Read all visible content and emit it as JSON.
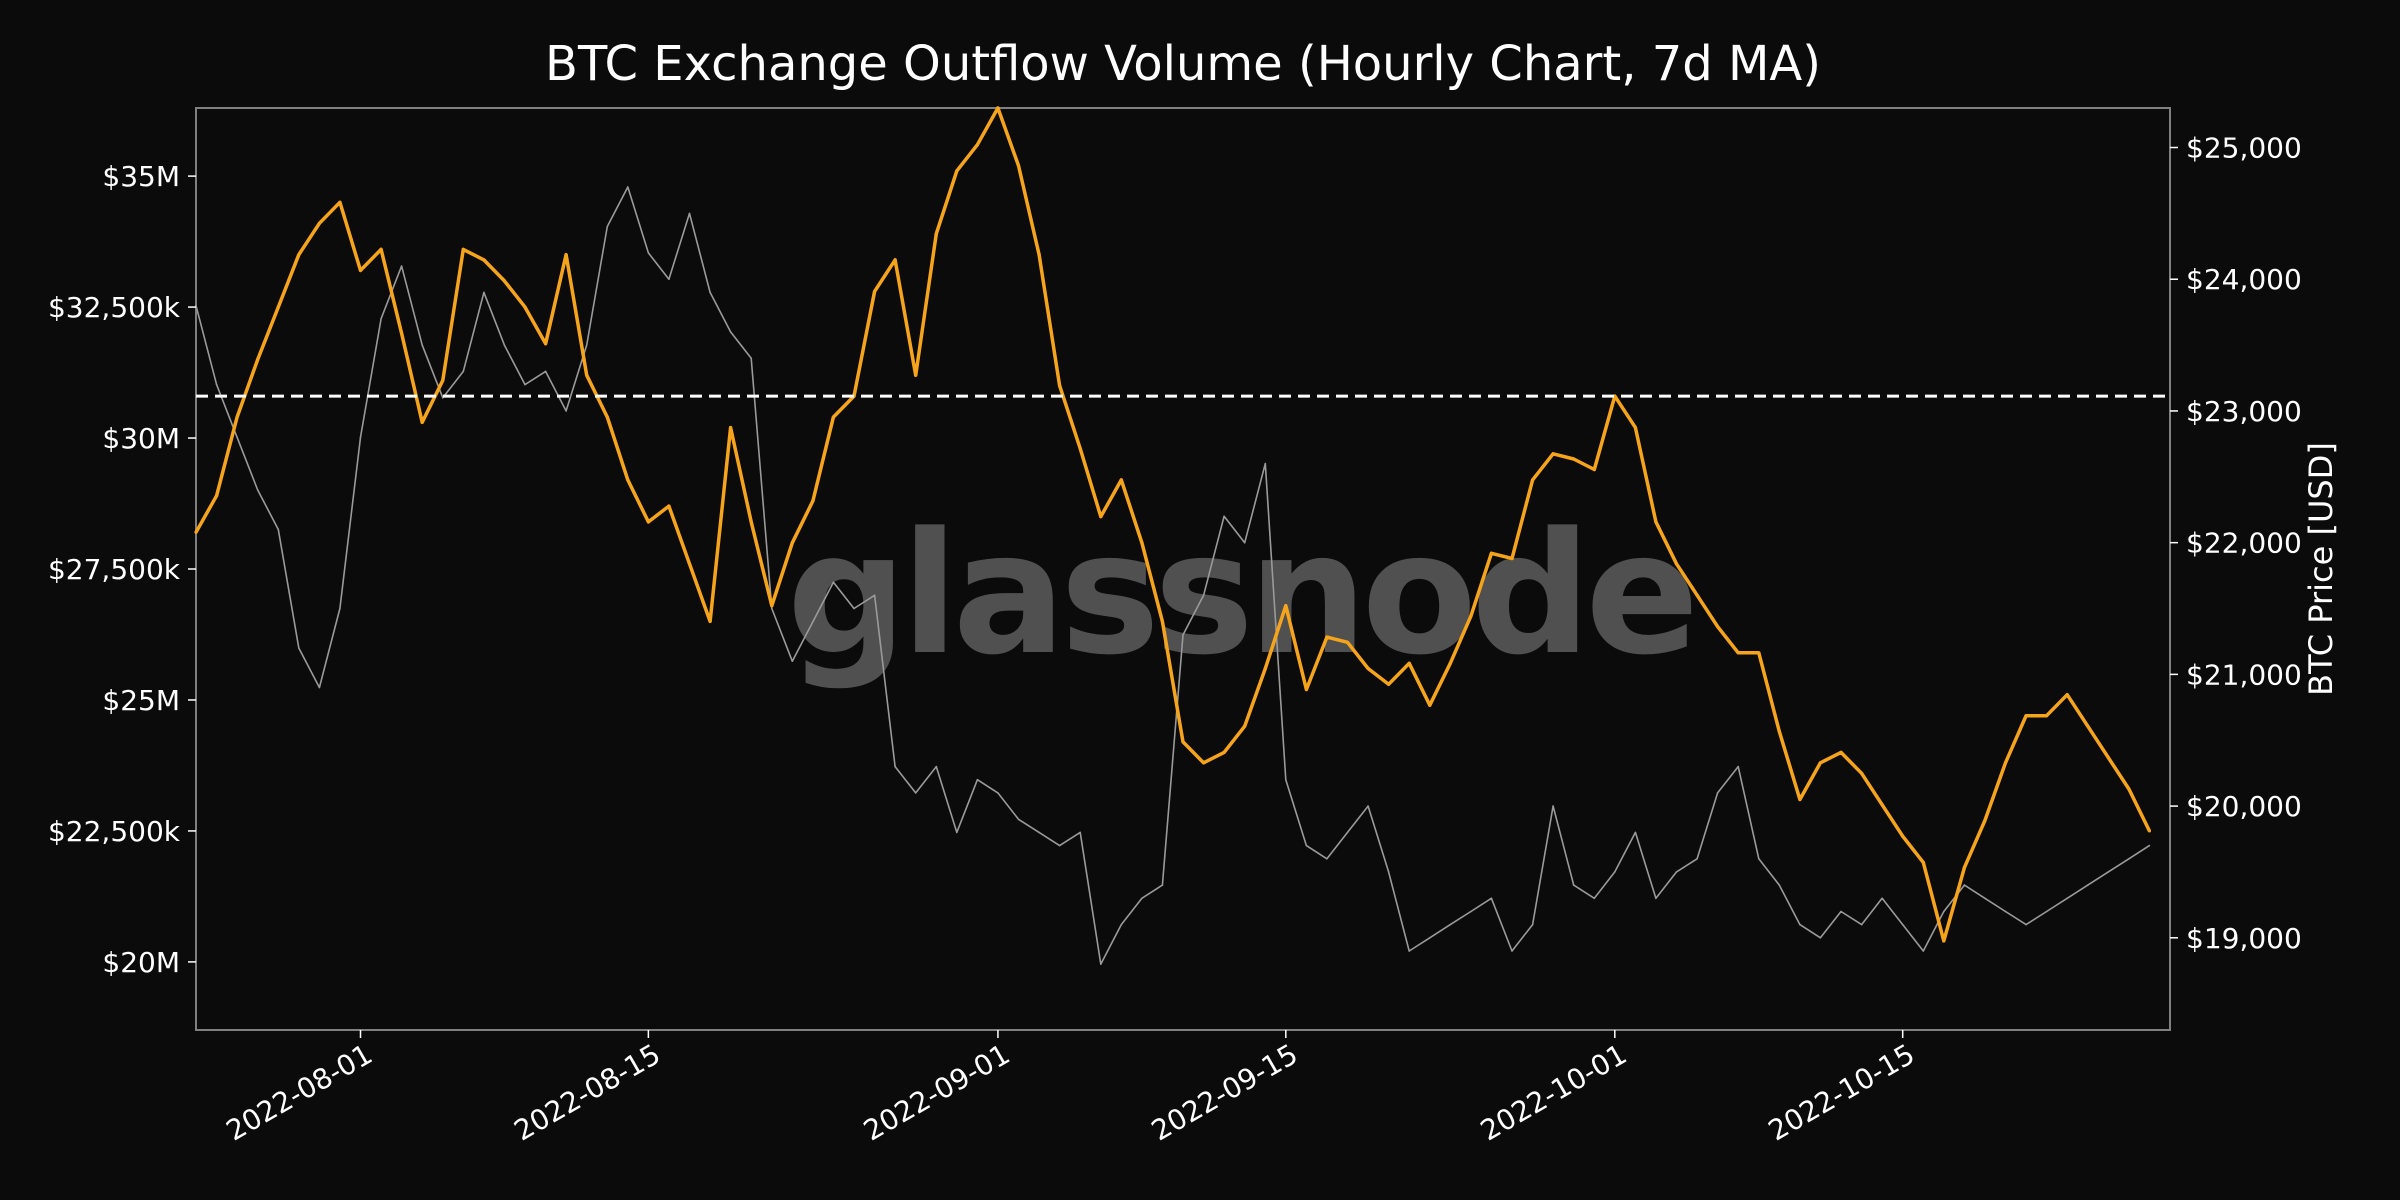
{
  "chart_data": {
    "type": "line",
    "title": "BTC Exchange Outflow Volume (Hourly Chart, 7d MA)",
    "watermark": "glassnode",
    "ylabel_right": "BTC Price [USD]",
    "x_range": [
      "2022-07-24",
      "2022-10-28"
    ],
    "x_ticks": [
      "2022-08-01",
      "2022-08-15",
      "2022-09-01",
      "2022-09-15",
      "2022-10-01",
      "2022-10-15"
    ],
    "y_left_range": [
      18700000,
      36300000
    ],
    "y_left_ticks": [
      {
        "value": 20000000,
        "label": "$20M"
      },
      {
        "value": 22500000,
        "label": "$22,500k"
      },
      {
        "value": 25000000,
        "label": "$25M"
      },
      {
        "value": 27500000,
        "label": "$27,500k"
      },
      {
        "value": 30000000,
        "label": "$30M"
      },
      {
        "value": 32500000,
        "label": "$32,500k"
      },
      {
        "value": 35000000,
        "label": "$35M"
      }
    ],
    "y_right_range": [
      18300,
      25300
    ],
    "y_right_ticks": [
      {
        "value": 19000,
        "label": "$19,000"
      },
      {
        "value": 20000,
        "label": "$20,000"
      },
      {
        "value": 21000,
        "label": "$21,000"
      },
      {
        "value": 22000,
        "label": "$22,000"
      },
      {
        "value": 23000,
        "label": "$23,000"
      },
      {
        "value": 24000,
        "label": "$24,000"
      },
      {
        "value": 25000,
        "label": "$25,000"
      }
    ],
    "reference_line": {
      "value": 30800000,
      "style": "dashed",
      "color": "#ffffff"
    },
    "grid": false,
    "colors": {
      "outflow": "#f7a41d",
      "price": "#9a9a9a",
      "background": "#0b0b0b",
      "frame": "#808080"
    },
    "series": [
      {
        "axis": "left",
        "points": [
          [
            "2022-07-24",
            28200000
          ],
          [
            "2022-07-25",
            28900000
          ],
          [
            "2022-07-26",
            30400000
          ],
          [
            "2022-07-27",
            31500000
          ],
          [
            "2022-07-28",
            32500000
          ],
          [
            "2022-07-29",
            33500000
          ],
          [
            "2022-07-30",
            34100000
          ],
          [
            "2022-07-31",
            34500000
          ],
          [
            "2022-08-01",
            33200000
          ],
          [
            "2022-08-02",
            33600000
          ],
          [
            "2022-08-03",
            32000000
          ],
          [
            "2022-08-04",
            30300000
          ],
          [
            "2022-08-05",
            31100000
          ],
          [
            "2022-08-06",
            33600000
          ],
          [
            "2022-08-07",
            33400000
          ],
          [
            "2022-08-08",
            33000000
          ],
          [
            "2022-08-09",
            32500000
          ],
          [
            "2022-08-10",
            31800000
          ],
          [
            "2022-08-11",
            33500000
          ],
          [
            "2022-08-12",
            31200000
          ],
          [
            "2022-08-13",
            30400000
          ],
          [
            "2022-08-14",
            29200000
          ],
          [
            "2022-08-15",
            28400000
          ],
          [
            "2022-08-16",
            28700000
          ],
          [
            "2022-08-17",
            27600000
          ],
          [
            "2022-08-18",
            26500000
          ],
          [
            "2022-08-19",
            30200000
          ],
          [
            "2022-08-20",
            28400000
          ],
          [
            "2022-08-21",
            26800000
          ],
          [
            "2022-08-22",
            28000000
          ],
          [
            "2022-08-23",
            28800000
          ],
          [
            "2022-08-24",
            30400000
          ],
          [
            "2022-08-25",
            30800000
          ],
          [
            "2022-08-26",
            32800000
          ],
          [
            "2022-08-27",
            33400000
          ],
          [
            "2022-08-28",
            31200000
          ],
          [
            "2022-08-29",
            33900000
          ],
          [
            "2022-08-30",
            35100000
          ],
          [
            "2022-08-31",
            35600000
          ],
          [
            "2022-09-01",
            36300000
          ],
          [
            "2022-09-02",
            35200000
          ],
          [
            "2022-09-03",
            33500000
          ],
          [
            "2022-09-04",
            31000000
          ],
          [
            "2022-09-05",
            29800000
          ],
          [
            "2022-09-06",
            28500000
          ],
          [
            "2022-09-07",
            29200000
          ],
          [
            "2022-09-08",
            28000000
          ],
          [
            "2022-09-09",
            26500000
          ],
          [
            "2022-09-10",
            24200000
          ],
          [
            "2022-09-11",
            23800000
          ],
          [
            "2022-09-12",
            24000000
          ],
          [
            "2022-09-13",
            24500000
          ],
          [
            "2022-09-14",
            25600000
          ],
          [
            "2022-09-15",
            26800000
          ],
          [
            "2022-09-16",
            25200000
          ],
          [
            "2022-09-17",
            26200000
          ],
          [
            "2022-09-18",
            26100000
          ],
          [
            "2022-09-19",
            25600000
          ],
          [
            "2022-09-20",
            25300000
          ],
          [
            "2022-09-21",
            25700000
          ],
          [
            "2022-09-22",
            24900000
          ],
          [
            "2022-09-23",
            25700000
          ],
          [
            "2022-09-24",
            26600000
          ],
          [
            "2022-09-25",
            27800000
          ],
          [
            "2022-09-26",
            27700000
          ],
          [
            "2022-09-27",
            29200000
          ],
          [
            "2022-09-28",
            29700000
          ],
          [
            "2022-09-29",
            29600000
          ],
          [
            "2022-09-30",
            29400000
          ],
          [
            "2022-10-01",
            30800000
          ],
          [
            "2022-10-02",
            30200000
          ],
          [
            "2022-10-03",
            28400000
          ],
          [
            "2022-10-04",
            27600000
          ],
          [
            "2022-10-05",
            27000000
          ],
          [
            "2022-10-06",
            26400000
          ],
          [
            "2022-10-07",
            25900000
          ],
          [
            "2022-10-08",
            25900000
          ],
          [
            "2022-10-09",
            24400000
          ],
          [
            "2022-10-10",
            23100000
          ],
          [
            "2022-10-11",
            23800000
          ],
          [
            "2022-10-12",
            24000000
          ],
          [
            "2022-10-13",
            23600000
          ],
          [
            "2022-10-14",
            23000000
          ],
          [
            "2022-10-15",
            22400000
          ],
          [
            "2022-10-16",
            21900000
          ],
          [
            "2022-10-17",
            20400000
          ],
          [
            "2022-10-18",
            21800000
          ],
          [
            "2022-10-19",
            22700000
          ],
          [
            "2022-10-20",
            23800000
          ],
          [
            "2022-10-21",
            24700000
          ],
          [
            "2022-10-22",
            24700000
          ],
          [
            "2022-10-23",
            25100000
          ],
          [
            "2022-10-24",
            24500000
          ],
          [
            "2022-10-25",
            23900000
          ],
          [
            "2022-10-26",
            23300000
          ],
          [
            "2022-10-27",
            22500000
          ]
        ]
      },
      {
        "axis": "right",
        "points": [
          [
            "2022-07-24",
            23800
          ],
          [
            "2022-07-25",
            23200
          ],
          [
            "2022-07-26",
            22800
          ],
          [
            "2022-07-27",
            22400
          ],
          [
            "2022-07-28",
            22100
          ],
          [
            "2022-07-29",
            21200
          ],
          [
            "2022-07-30",
            20900
          ],
          [
            "2022-07-31",
            21500
          ],
          [
            "2022-08-01",
            22800
          ],
          [
            "2022-08-02",
            23700
          ],
          [
            "2022-08-03",
            24100
          ],
          [
            "2022-08-04",
            23500
          ],
          [
            "2022-08-05",
            23100
          ],
          [
            "2022-08-06",
            23300
          ],
          [
            "2022-08-07",
            23900
          ],
          [
            "2022-08-08",
            23500
          ],
          [
            "2022-08-09",
            23200
          ],
          [
            "2022-08-10",
            23300
          ],
          [
            "2022-08-11",
            23000
          ],
          [
            "2022-08-12",
            23500
          ],
          [
            "2022-08-13",
            24400
          ],
          [
            "2022-08-14",
            24700
          ],
          [
            "2022-08-15",
            24200
          ],
          [
            "2022-08-16",
            24000
          ],
          [
            "2022-08-17",
            24500
          ],
          [
            "2022-08-18",
            23900
          ],
          [
            "2022-08-19",
            23600
          ],
          [
            "2022-08-20",
            23400
          ],
          [
            "2022-08-21",
            21500
          ],
          [
            "2022-08-22",
            21100
          ],
          [
            "2022-08-23",
            21400
          ],
          [
            "2022-08-24",
            21700
          ],
          [
            "2022-08-25",
            21500
          ],
          [
            "2022-08-26",
            21600
          ],
          [
            "2022-08-27",
            20300
          ],
          [
            "2022-08-28",
            20100
          ],
          [
            "2022-08-29",
            20300
          ],
          [
            "2022-08-30",
            19800
          ],
          [
            "2022-08-31",
            20200
          ],
          [
            "2022-09-01",
            20100
          ],
          [
            "2022-09-02",
            19900
          ],
          [
            "2022-09-03",
            19800
          ],
          [
            "2022-09-04",
            19700
          ],
          [
            "2022-09-05",
            19800
          ],
          [
            "2022-09-06",
            18800
          ],
          [
            "2022-09-07",
            19100
          ],
          [
            "2022-09-08",
            19300
          ],
          [
            "2022-09-09",
            19400
          ],
          [
            "2022-09-10",
            21300
          ],
          [
            "2022-09-11",
            21600
          ],
          [
            "2022-09-12",
            22200
          ],
          [
            "2022-09-13",
            22000
          ],
          [
            "2022-09-14",
            22600
          ],
          [
            "2022-09-15",
            20200
          ],
          [
            "2022-09-16",
            19700
          ],
          [
            "2022-09-17",
            19600
          ],
          [
            "2022-09-18",
            19800
          ],
          [
            "2022-09-19",
            20000
          ],
          [
            "2022-09-20",
            19500
          ],
          [
            "2022-09-21",
            18900
          ],
          [
            "2022-09-22",
            19000
          ],
          [
            "2022-09-23",
            19100
          ],
          [
            "2022-09-24",
            19200
          ],
          [
            "2022-09-25",
            19300
          ],
          [
            "2022-09-26",
            18900
          ],
          [
            "2022-09-27",
            19100
          ],
          [
            "2022-09-28",
            20000
          ],
          [
            "2022-09-29",
            19400
          ],
          [
            "2022-09-30",
            19300
          ],
          [
            "2022-10-01",
            19500
          ],
          [
            "2022-10-02",
            19800
          ],
          [
            "2022-10-03",
            19300
          ],
          [
            "2022-10-04",
            19500
          ],
          [
            "2022-10-05",
            19600
          ],
          [
            "2022-10-06",
            20100
          ],
          [
            "2022-10-07",
            20300
          ],
          [
            "2022-10-08",
            19600
          ],
          [
            "2022-10-09",
            19400
          ],
          [
            "2022-10-10",
            19100
          ],
          [
            "2022-10-11",
            19000
          ],
          [
            "2022-10-12",
            19200
          ],
          [
            "2022-10-13",
            19100
          ],
          [
            "2022-10-14",
            19300
          ],
          [
            "2022-10-15",
            19100
          ],
          [
            "2022-10-16",
            18900
          ],
          [
            "2022-10-17",
            19200
          ],
          [
            "2022-10-18",
            19400
          ],
          [
            "2022-10-19",
            19300
          ],
          [
            "2022-10-20",
            19200
          ],
          [
            "2022-10-21",
            19100
          ],
          [
            "2022-10-22",
            19200
          ],
          [
            "2022-10-23",
            19300
          ],
          [
            "2022-10-24",
            19400
          ],
          [
            "2022-10-25",
            19500
          ],
          [
            "2022-10-26",
            19600
          ],
          [
            "2022-10-27",
            19700
          ]
        ]
      }
    ]
  }
}
